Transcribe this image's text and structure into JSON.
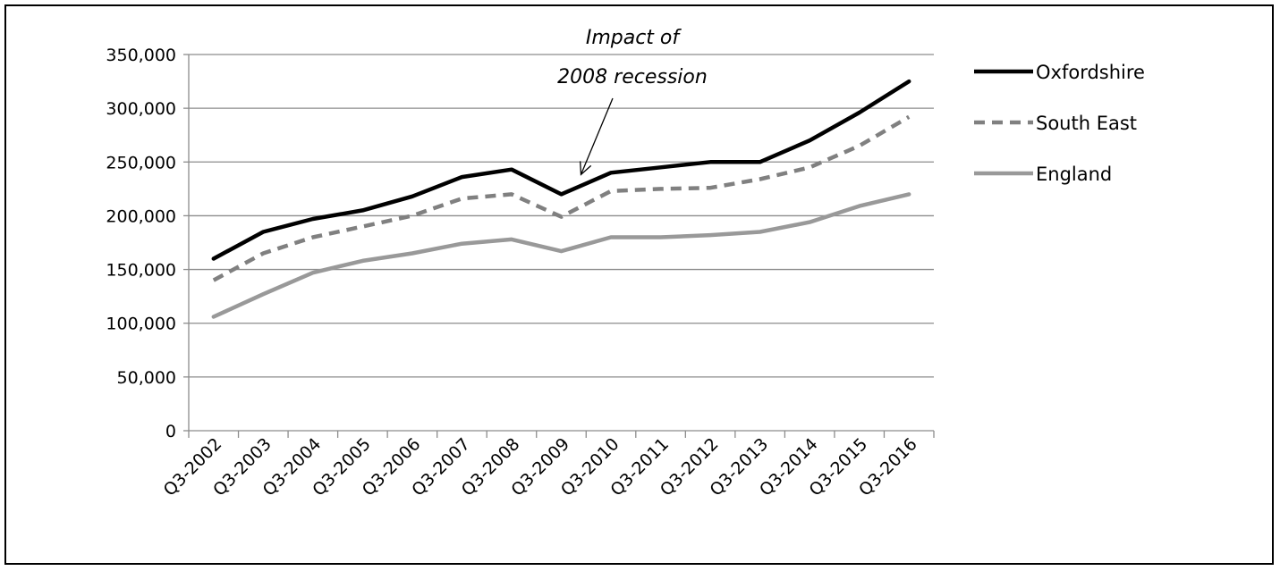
{
  "chart_data": {
    "type": "line",
    "title": "",
    "xlabel": "",
    "ylabel": "",
    "categories": [
      "Q3-2002",
      "Q3-2003",
      "Q3-2004",
      "Q3-2005",
      "Q3-2006",
      "Q3-2007",
      "Q3-2008",
      "Q3-2009",
      "Q3-2010",
      "Q3-2011",
      "Q3-2012",
      "Q3-2013",
      "Q3-2014",
      "Q3-2015",
      "Q3-2016"
    ],
    "ylim": [
      0,
      350000
    ],
    "yticks": [
      0,
      50000,
      100000,
      150000,
      200000,
      250000,
      300000,
      350000
    ],
    "ytick_labels": [
      "0",
      "50,000",
      "100,000",
      "150,000",
      "200,000",
      "250,000",
      "300,000",
      "350,000"
    ],
    "grid": "horizontal",
    "legend": "right",
    "series": [
      {
        "name": "Oxfordshire",
        "color": "#000000",
        "style": "solid",
        "values": [
          160000,
          185000,
          197000,
          205000,
          218000,
          236000,
          243000,
          220000,
          240000,
          245000,
          250000,
          250000,
          270000,
          296000,
          325000
        ]
      },
      {
        "name": "South East",
        "color": "#808080",
        "style": "dashed",
        "values": [
          140000,
          165000,
          180000,
          190000,
          200000,
          216000,
          220000,
          199000,
          223000,
          225000,
          226000,
          234000,
          245000,
          265000,
          292000
        ]
      },
      {
        "name": "England",
        "color": "#999999",
        "style": "solid",
        "values": [
          106000,
          127000,
          147000,
          158000,
          165000,
          174000,
          178000,
          167000,
          180000,
          180000,
          182000,
          185000,
          194000,
          209000,
          220000
        ]
      }
    ],
    "annotation": {
      "lines": [
        "Impact of",
        "2008 recession"
      ],
      "target_category": "Q3-2009",
      "target_value": 220000
    }
  }
}
